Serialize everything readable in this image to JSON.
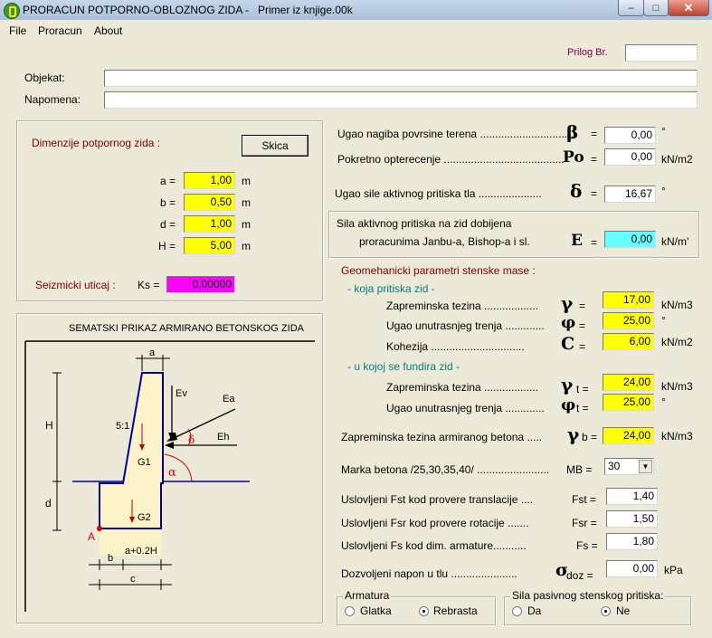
{
  "window": {
    "title": "PRORACUN POTPORNO-OBLOZNOG ZIDA -",
    "file_title": "Primer iz knjige.00k",
    "buttons": {
      "minimize": "–",
      "maximize": "□",
      "close": "✕"
    }
  },
  "menu": [
    "File",
    "Proracun",
    "About"
  ],
  "header": {
    "prilog_label": "Prilog Br.",
    "prilog_value": "",
    "objekat_label": "Objekat:",
    "objekat_value": "",
    "napomena_label": "Napomena:",
    "napomena_value": ""
  },
  "dimensions": {
    "title": "Dimenzije potpornog zida :",
    "skica_button": "Skica",
    "fields": [
      {
        "label": "a =",
        "value": "1,00",
        "unit": "m"
      },
      {
        "label": "b =",
        "value": "0,50",
        "unit": "m"
      },
      {
        "label": "d =",
        "value": "1,00",
        "unit": "m"
      },
      {
        "label": "H =",
        "value": "5,00",
        "unit": "m"
      }
    ],
    "seismic_label": "Seizmicki uticaj :",
    "ks_label": "Ks =",
    "ks_value": "0,00000"
  },
  "diagram": {
    "title": "SEMATSKI PRIKAZ ARMIRANO BETONSKOG ZIDA",
    "labels": {
      "a": "a",
      "H": "H",
      "d": "d",
      "slope": "5:1",
      "Ev": "Ev",
      "Ea": "Ea",
      "Eh": "Eh",
      "delta": "δ",
      "alpha": "α",
      "G1": "G1",
      "G2": "G2",
      "A": "A",
      "b": "b",
      "a_plus": "a+0.2H",
      "c": "c"
    }
  },
  "terrain": {
    "beta_label": "Ugao nagiba povrsine terena ...............................",
    "beta_symbol": "β",
    "beta_eq": "=",
    "beta_value": "0,00",
    "beta_unit": "°",
    "po_label": "Pokretno opterecenje ........................................",
    "po_symbol": "Po",
    "po_eq": "=",
    "po_value": "0,00",
    "po_unit": "kN/m2",
    "delta_label": "Ugao sile aktivnog pritiska tla .....................",
    "delta_symbol": "δ",
    "delta_eq": "=",
    "delta_value": "16,67",
    "delta_unit": "°"
  },
  "active_force": {
    "line1": "Sila aktivnog pritiska na zid  dobijena",
    "line2": "proracunima Janbu-a, Bishop-a i sl.",
    "symbol": "E",
    "eq": "=",
    "value": "0,00",
    "unit": "kN/m'"
  },
  "geo": {
    "title": "Geomehanicki parametri stenske mase :",
    "sub1": "- koja pritiska zid -",
    "rows1": [
      {
        "label": "Zapreminska tezina ..................",
        "symbol": "γ",
        "eq": "=",
        "value": "17,00",
        "unit": "kN/m3"
      },
      {
        "label": "Ugao unutrasnjeg trenja .............",
        "symbol": "φ",
        "eq": "=",
        "value": "25,00",
        "unit": "°"
      },
      {
        "label": "Kohezija  ...............................",
        "symbol": "C",
        "eq": "=",
        "value": "6,00",
        "unit": "kN/m2"
      }
    ],
    "sub2": "- u kojoj se fundira zid -",
    "rows2": [
      {
        "label": "Zapreminska tezina ..................",
        "symbol": "γ",
        "sub": "t =",
        "value": "24,00",
        "unit": "kN/m3"
      },
      {
        "label": "Ugao unutrasnjeg trenja .............",
        "symbol": "φ",
        "sub": "t =",
        "value": "25,00",
        "unit": "°"
      }
    ]
  },
  "concrete": {
    "gamma_b_label": "Zapreminska tezina armiranog betona  .....",
    "gamma_b_symbol": "γ",
    "gamma_b_sub": "b =",
    "gamma_b_value": "24,00",
    "gamma_b_unit": "kN/m3",
    "mb_label": "Marka betona   /25,30,35,40/  ........................",
    "mb_eq": "MB =",
    "mb_value": "30"
  },
  "safety": {
    "rows": [
      {
        "label": "Uslovljeni Fst  kod provere translacije  ....",
        "symbol": "Fst =",
        "value": "1,40"
      },
      {
        "label": "Uslovljeni Fsr  kod provere rotacije  .......",
        "symbol": "Fsr =",
        "value": "1,50"
      },
      {
        "label": "Uslovljeni Fs  kod dim. armature...........",
        "symbol": "Fs =",
        "value": "1,80"
      }
    ],
    "stress_label": "Dozvoljeni napon u tlu  ......................",
    "stress_symbol": "σ",
    "stress_sub": "doz =",
    "stress_value": "0,00",
    "stress_unit": "kPa"
  },
  "armatura": {
    "title": "Armatura",
    "options": [
      "Glatka",
      "Rebrasta"
    ],
    "selected": "Rebrasta"
  },
  "passive": {
    "title": "Sila pasivnog stenskog pritiska:",
    "options": [
      "Da",
      "Ne"
    ],
    "selected": "Ne"
  }
}
